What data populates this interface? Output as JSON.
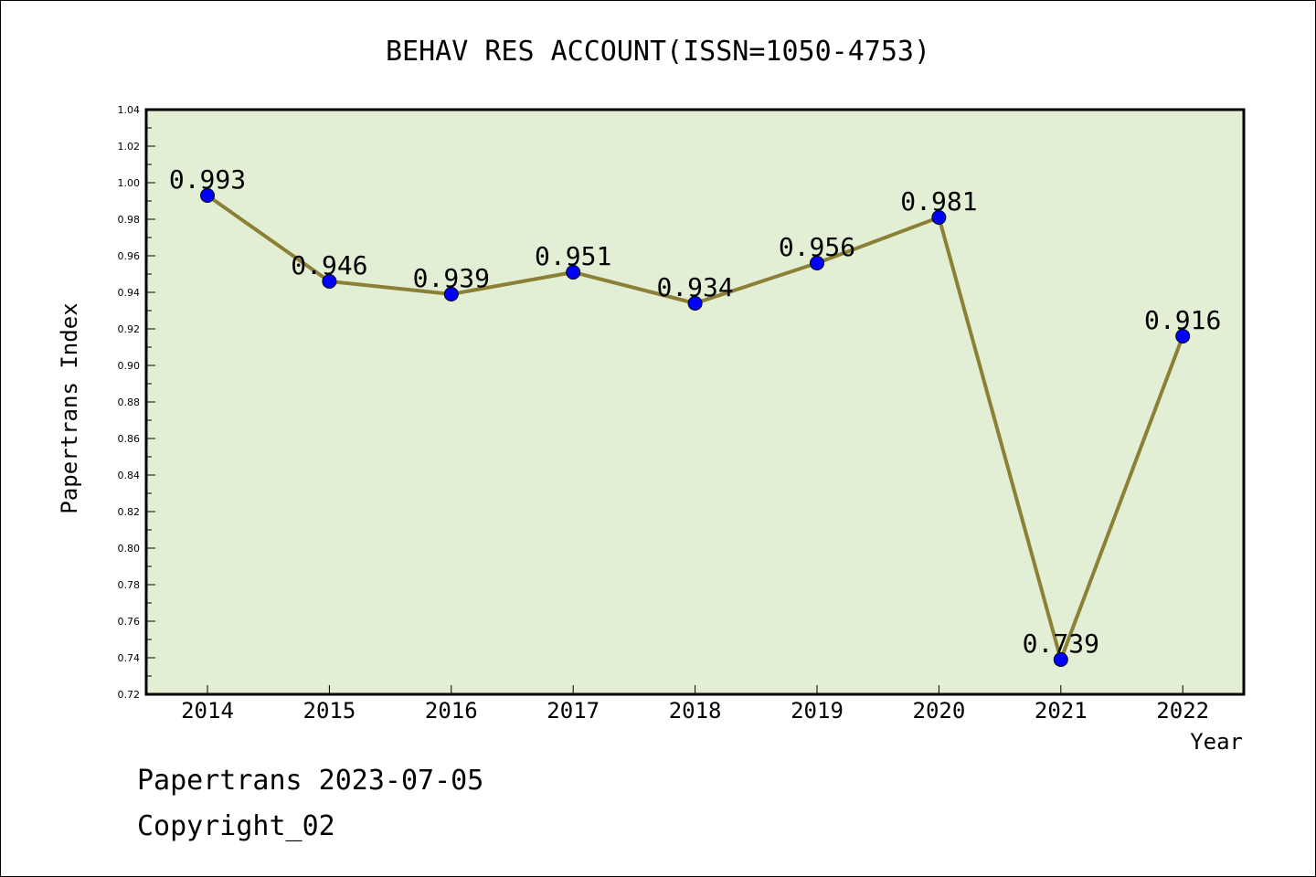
{
  "chart_data": {
    "type": "line",
    "title": "BEHAV RES ACCOUNT(ISSN=1050-4753)",
    "xlabel": "Year",
    "ylabel": "Papertrans Index",
    "categories": [
      "2014",
      "2015",
      "2016",
      "2017",
      "2018",
      "2019",
      "2020",
      "2021",
      "2022"
    ],
    "values": [
      0.993,
      0.946,
      0.939,
      0.951,
      0.934,
      0.956,
      0.981,
      0.739,
      0.916
    ],
    "data_labels": [
      "0.993",
      "0.946",
      "0.939",
      "0.951",
      "0.934",
      "0.956",
      "0.981",
      "0.739",
      "0.916"
    ],
    "ylim": [
      0.72,
      1.04
    ],
    "yticks": [
      "0.72",
      "0.74",
      "0.76",
      "0.78",
      "0.80",
      "0.82",
      "0.84",
      "0.86",
      "0.88",
      "0.90",
      "0.92",
      "0.94",
      "0.96",
      "0.98",
      "1.00",
      "1.02",
      "1.04"
    ],
    "grid": false,
    "colors": {
      "plot_background": "#e2efd4",
      "line": "#8b8035",
      "marker": "#0000ff"
    }
  },
  "footer": {
    "line1": "Papertrans 2023-07-05",
    "line2": "Copyright_02"
  }
}
